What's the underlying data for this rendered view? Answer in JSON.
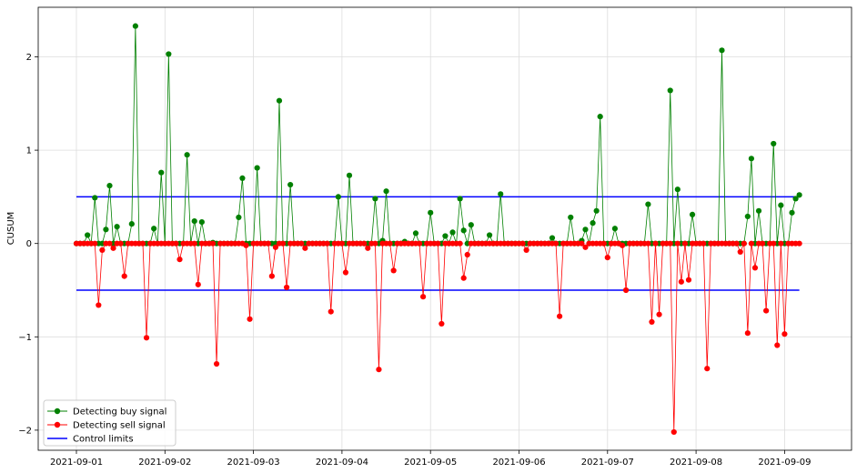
{
  "chart_data": {
    "type": "line",
    "title": "",
    "xlabel": "",
    "ylabel": "CUSUM",
    "x_tick_labels": [
      "2021-09-01",
      "2021-09-02",
      "2021-09-03",
      "2021-09-04",
      "2021-09-05",
      "2021-09-06",
      "2021-09-07",
      "2021-09-08",
      "2021-09-09"
    ],
    "y_tick_labels": [
      "2",
      "1",
      "0",
      "−1",
      "−2"
    ],
    "ylim": [
      -2.2,
      2.55
    ],
    "grid": true,
    "legend_position": "lower-left",
    "colors": {
      "buy": "#008000",
      "sell": "#ff0000",
      "limits": "#0000ff"
    },
    "control_limits": {
      "name": "Control limits",
      "upper": 0.5,
      "lower": -0.5
    },
    "series": [
      {
        "name": "Detecting buy signal",
        "spikes": [
          {
            "x": "2021-09-01 03:00",
            "y": 0.09
          },
          {
            "x": "2021-09-01 05:00",
            "y": 0.49
          },
          {
            "x": "2021-09-01 08:00",
            "y": 0.15
          },
          {
            "x": "2021-09-01 09:00",
            "y": 0.62
          },
          {
            "x": "2021-09-01 11:00",
            "y": 0.18
          },
          {
            "x": "2021-09-01 15:00",
            "y": 0.21
          },
          {
            "x": "2021-09-01 16:00",
            "y": 2.33
          },
          {
            "x": "2021-09-01 21:00",
            "y": 0.16
          },
          {
            "x": "2021-09-01 23:00",
            "y": 0.76
          },
          {
            "x": "2021-09-02 01:00",
            "y": 2.03
          },
          {
            "x": "2021-09-02 06:00",
            "y": 0.95
          },
          {
            "x": "2021-09-02 08:00",
            "y": 0.24
          },
          {
            "x": "2021-09-02 10:00",
            "y": 0.23
          },
          {
            "x": "2021-09-02 13:00",
            "y": 0.01
          },
          {
            "x": "2021-09-02 20:00",
            "y": 0.28
          },
          {
            "x": "2021-09-02 21:00",
            "y": 0.7
          },
          {
            "x": "2021-09-03 01:00",
            "y": 0.81
          },
          {
            "x": "2021-09-03 07:00",
            "y": 1.53
          },
          {
            "x": "2021-09-03 10:00",
            "y": 0.63
          },
          {
            "x": "2021-09-03 23:00",
            "y": 0.5
          },
          {
            "x": "2021-09-04 02:00",
            "y": 0.73
          },
          {
            "x": "2021-09-04 09:00",
            "y": 0.48
          },
          {
            "x": "2021-09-04 11:00",
            "y": 0.03
          },
          {
            "x": "2021-09-04 12:00",
            "y": 0.56
          },
          {
            "x": "2021-09-04 17:00",
            "y": 0.02
          },
          {
            "x": "2021-09-04 20:00",
            "y": 0.11
          },
          {
            "x": "2021-09-05 00:00",
            "y": 0.33
          },
          {
            "x": "2021-09-05 04:00",
            "y": 0.08
          },
          {
            "x": "2021-09-05 06:00",
            "y": 0.12
          },
          {
            "x": "2021-09-05 08:00",
            "y": 0.48
          },
          {
            "x": "2021-09-05 09:00",
            "y": 0.14
          },
          {
            "x": "2021-09-05 11:00",
            "y": 0.2
          },
          {
            "x": "2021-09-05 16:00",
            "y": 0.09
          },
          {
            "x": "2021-09-05 19:00",
            "y": 0.53
          },
          {
            "x": "2021-09-06 09:00",
            "y": 0.06
          },
          {
            "x": "2021-09-06 14:00",
            "y": 0.28
          },
          {
            "x": "2021-09-06 17:00",
            "y": 0.03
          },
          {
            "x": "2021-09-06 18:00",
            "y": 0.15
          },
          {
            "x": "2021-09-06 20:00",
            "y": 0.22
          },
          {
            "x": "2021-09-06 21:00",
            "y": 0.35
          },
          {
            "x": "2021-09-06 22:00",
            "y": 1.36
          },
          {
            "x": "2021-09-07 02:00",
            "y": 0.16
          },
          {
            "x": "2021-09-07 11:00",
            "y": 0.42
          },
          {
            "x": "2021-09-07 17:00",
            "y": 1.64
          },
          {
            "x": "2021-09-07 19:00",
            "y": 0.58
          },
          {
            "x": "2021-09-07 23:00",
            "y": 0.31
          },
          {
            "x": "2021-09-08 07:00",
            "y": 2.07
          },
          {
            "x": "2021-09-08 14:00",
            "y": 0.29
          },
          {
            "x": "2021-09-08 15:00",
            "y": 0.91
          },
          {
            "x": "2021-09-08 17:00",
            "y": 0.35
          },
          {
            "x": "2021-09-08 21:00",
            "y": 1.07
          },
          {
            "x": "2021-09-08 23:00",
            "y": 0.41
          },
          {
            "x": "2021-09-09 02:00",
            "y": 0.33
          },
          {
            "x": "2021-09-09 03:00",
            "y": 0.48
          },
          {
            "x": "2021-09-09 04:00",
            "y": 0.52
          }
        ]
      },
      {
        "name": "Detecting sell signal",
        "spikes": [
          {
            "x": "2021-09-01 06:00",
            "y": -0.66
          },
          {
            "x": "2021-09-01 07:00",
            "y": -0.07
          },
          {
            "x": "2021-09-01 10:00",
            "y": -0.05
          },
          {
            "x": "2021-09-01 13:00",
            "y": -0.35
          },
          {
            "x": "2021-09-01 19:00",
            "y": -1.01
          },
          {
            "x": "2021-09-02 04:00",
            "y": -0.17
          },
          {
            "x": "2021-09-02 09:00",
            "y": -0.44
          },
          {
            "x": "2021-09-02 14:00",
            "y": -1.29
          },
          {
            "x": "2021-09-02 22:00",
            "y": -0.02
          },
          {
            "x": "2021-09-02 23:00",
            "y": -0.81
          },
          {
            "x": "2021-09-03 05:00",
            "y": -0.35
          },
          {
            "x": "2021-09-03 06:00",
            "y": -0.04
          },
          {
            "x": "2021-09-03 09:00",
            "y": -0.47
          },
          {
            "x": "2021-09-03 14:00",
            "y": -0.05
          },
          {
            "x": "2021-09-03 21:00",
            "y": -0.73
          },
          {
            "x": "2021-09-04 01:00",
            "y": -0.31
          },
          {
            "x": "2021-09-04 07:00",
            "y": -0.05
          },
          {
            "x": "2021-09-04 10:00",
            "y": -1.35
          },
          {
            "x": "2021-09-04 14:00",
            "y": -0.29
          },
          {
            "x": "2021-09-04 22:00",
            "y": -0.57
          },
          {
            "x": "2021-09-05 03:00",
            "y": -0.86
          },
          {
            "x": "2021-09-05 09:00",
            "y": -0.37
          },
          {
            "x": "2021-09-05 10:00",
            "y": -0.12
          },
          {
            "x": "2021-09-06 02:00",
            "y": -0.07
          },
          {
            "x": "2021-09-06 11:00",
            "y": -0.78
          },
          {
            "x": "2021-09-06 18:00",
            "y": -0.04
          },
          {
            "x": "2021-09-07 00:00",
            "y": -0.15
          },
          {
            "x": "2021-09-07 04:00",
            "y": -0.02
          },
          {
            "x": "2021-09-07 05:00",
            "y": -0.5
          },
          {
            "x": "2021-09-07 12:00",
            "y": -0.84
          },
          {
            "x": "2021-09-07 14:00",
            "y": -0.76
          },
          {
            "x": "2021-09-07 18:00",
            "y": -2.02
          },
          {
            "x": "2021-09-07 20:00",
            "y": -0.41
          },
          {
            "x": "2021-09-07 22:00",
            "y": -0.39
          },
          {
            "x": "2021-09-08 03:00",
            "y": -1.34
          },
          {
            "x": "2021-09-08 12:00",
            "y": -0.09
          },
          {
            "x": "2021-09-08 14:00",
            "y": -0.96
          },
          {
            "x": "2021-09-08 16:00",
            "y": -0.26
          },
          {
            "x": "2021-09-08 19:00",
            "y": -0.72
          },
          {
            "x": "2021-09-08 22:00",
            "y": -1.09
          },
          {
            "x": "2021-09-09 00:00",
            "y": -0.97
          },
          {
            "x": "2021-09-09 05:00",
            "y": -0.05
          }
        ]
      }
    ]
  }
}
